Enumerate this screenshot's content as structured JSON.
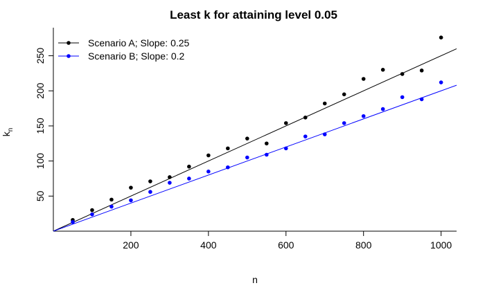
{
  "chart_data": {
    "type": "scatter",
    "title": "Least k for attaining level 0.05",
    "xlabel": "n",
    "ylabel": {
      "main": "k",
      "subscript": "n"
    },
    "xlim": [
      0,
      1040
    ],
    "ylim": [
      0,
      290
    ],
    "xticks": [
      200,
      400,
      600,
      800,
      1000
    ],
    "yticks": [
      50,
      100,
      150,
      200,
      250
    ],
    "grid": false,
    "legend_position": "top-left",
    "x": [
      50,
      100,
      150,
      200,
      250,
      300,
      350,
      400,
      450,
      500,
      550,
      600,
      650,
      700,
      750,
      800,
      850,
      900,
      950,
      1000
    ],
    "series": [
      {
        "name": "Scenario A; Slope: 0.25",
        "color": "#000000",
        "slope": 0.25,
        "values": [
          16,
          30,
          45,
          62,
          71,
          77,
          92,
          108,
          118,
          132,
          125,
          154,
          162,
          182,
          195,
          217,
          230,
          224,
          229,
          276
        ]
      },
      {
        "name": "Scenario B; Slope: 0.2",
        "color": "#0000ff",
        "slope": 0.2,
        "values": [
          13,
          24,
          35,
          44,
          56,
          69,
          75,
          85,
          91,
          105,
          109,
          118,
          135,
          138,
          154,
          164,
          174,
          191,
          188,
          212
        ]
      }
    ]
  }
}
